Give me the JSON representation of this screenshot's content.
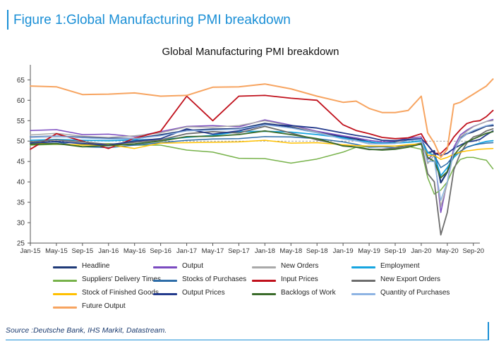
{
  "header": {
    "figure_title": "Figure 1:Global Manufacturing PMI breakdown"
  },
  "footer": {
    "source": "Source :Deutsche Bank, IHS Markit, Datastream."
  },
  "chart_data": {
    "type": "line",
    "title": "Global Manufacturing PMI breakdown",
    "xlabel": "",
    "ylabel": "",
    "ylim": [
      25,
      68
    ],
    "y_ticks": [
      25,
      30,
      35,
      40,
      45,
      50,
      55,
      60,
      65
    ],
    "reference_line": 50,
    "x_tick_labels": [
      "Jan-15",
      "May-15",
      "Sep-15",
      "Jan-16",
      "May-16",
      "Sep-16",
      "Jan-17",
      "May-17",
      "Sep-17",
      "Jan-18",
      "May-18",
      "Sep-18",
      "Jan-19",
      "May-19",
      "Sep-19",
      "Jan-20",
      "May-20",
      "Sep-20"
    ],
    "x": [
      "Jan-15",
      "May-15",
      "Sep-15",
      "Jan-16",
      "May-16",
      "Sep-16",
      "Jan-17",
      "May-17",
      "Sep-17",
      "Jan-18",
      "May-18",
      "Sep-18",
      "Jan-19",
      "Mar-19",
      "May-19",
      "Jul-19",
      "Sep-19",
      "Nov-19",
      "Jan-20",
      "Feb-20",
      "Mar-20",
      "Apr-20",
      "May-20",
      "Jun-20",
      "Jul-20",
      "Aug-20",
      "Sep-20",
      "Oct-20",
      "Nov-20",
      "Dec-20"
    ],
    "legend_position": "bottom",
    "grid": false,
    "series": [
      {
        "name": "Headline",
        "color": "#1f3a78",
        "width": 2.2,
        "values": [
          51.0,
          51.2,
          50.9,
          50.7,
          50.6,
          51.5,
          52.6,
          52.9,
          53.0,
          54.3,
          53.5,
          52.3,
          51.0,
          50.5,
          49.8,
          49.4,
          49.7,
          50.3,
          50.4,
          47.1,
          47.6,
          39.8,
          42.4,
          47.8,
          50.6,
          51.8,
          52.3,
          53.0,
          53.7,
          53.8
        ]
      },
      {
        "name": "Output",
        "color": "#7b4bc0",
        "width": 1.5,
        "values": [
          52.6,
          52.8,
          51.6,
          51.7,
          51.1,
          52.3,
          53.6,
          53.8,
          53.5,
          55.2,
          53.9,
          52.4,
          51.3,
          50.8,
          50.2,
          49.8,
          50.0,
          50.8,
          51.0,
          45.5,
          47.0,
          32.5,
          40.0,
          48.5,
          51.5,
          52.7,
          53.6,
          54.2,
          54.8,
          55.3
        ]
      },
      {
        "name": "New Orders",
        "color": "#a9a9a9",
        "width": 1.5,
        "values": [
          51.5,
          51.9,
          51.2,
          50.9,
          51.3,
          52.0,
          53.5,
          53.4,
          53.8,
          55.0,
          53.7,
          52.2,
          50.6,
          50.1,
          49.3,
          49.3,
          49.6,
          50.5,
          50.6,
          44.5,
          46.5,
          34.0,
          39.5,
          47.5,
          51.0,
          52.4,
          53.5,
          54.2,
          54.8,
          55.0
        ]
      },
      {
        "name": "Employment",
        "color": "#16a5e0",
        "width": 1.8,
        "values": [
          50.2,
          50.4,
          50.2,
          50.1,
          50.3,
          50.4,
          50.9,
          51.4,
          52.3,
          52.4,
          52.2,
          51.6,
          50.8,
          50.1,
          49.8,
          49.5,
          49.5,
          49.7,
          50.0,
          47.2,
          46.5,
          41.5,
          43.5,
          46.0,
          47.5,
          48.5,
          49.0,
          49.5,
          49.9,
          50.1
        ]
      },
      {
        "name": "Suppliers' Delivery Times",
        "color": "#77b24a",
        "width": 1.5,
        "values": [
          49.0,
          49.2,
          49.1,
          49.4,
          49.0,
          49.0,
          47.8,
          47.3,
          45.8,
          45.7,
          44.6,
          45.6,
          47.3,
          48.5,
          48.6,
          48.8,
          48.8,
          48.7,
          48.0,
          41.0,
          37.0,
          38.0,
          40.0,
          43.5,
          45.5,
          46.0,
          46.0,
          45.6,
          45.3,
          43.2
        ]
      },
      {
        "name": "Stocks of Purchases",
        "color": "#2e6da8",
        "width": 1.5,
        "values": [
          49.5,
          49.8,
          48.6,
          48.4,
          49.0,
          49.6,
          50.2,
          50.5,
          50.6,
          51.1,
          51.0,
          50.6,
          49.8,
          49.2,
          48.5,
          48.6,
          48.4,
          48.9,
          49.2,
          46.5,
          46.5,
          43.5,
          44.5,
          46.5,
          47.5,
          48.5,
          49.0,
          49.3,
          49.5,
          49.6
        ]
      },
      {
        "name": "Input Prices",
        "color": "#c0101b",
        "width": 1.8,
        "values": [
          48.0,
          51.8,
          50.0,
          48.2,
          50.7,
          52.4,
          61.0,
          55.0,
          61.0,
          61.2,
          60.5,
          60.0,
          54.0,
          52.6,
          51.8,
          50.9,
          50.6,
          50.8,
          51.8,
          49.0,
          47.0,
          47.0,
          48.5,
          51.0,
          52.8,
          54.3,
          54.8,
          55.0,
          56.0,
          57.5
        ]
      },
      {
        "name": "New Export Orders",
        "color": "#6d6d6d",
        "width": 1.8,
        "values": [
          49.8,
          50.3,
          49.8,
          49.2,
          49.7,
          50.3,
          51.8,
          52.3,
          52.0,
          53.6,
          52.0,
          50.3,
          49.0,
          48.5,
          47.9,
          48.0,
          48.3,
          48.9,
          49.5,
          42.0,
          40.0,
          27.0,
          32.5,
          43.0,
          47.0,
          49.5,
          51.0,
          51.5,
          52.5,
          53.0
        ]
      },
      {
        "name": "Stock of Finished Goods",
        "color": "#ffc000",
        "width": 1.5,
        "values": [
          49.5,
          49.3,
          49.0,
          49.1,
          48.2,
          49.5,
          49.6,
          49.7,
          49.8,
          50.2,
          49.5,
          49.6,
          49.1,
          48.9,
          48.8,
          48.8,
          48.8,
          49.1,
          49.3,
          46.5,
          46.5,
          45.5,
          46.0,
          46.8,
          47.3,
          47.6,
          47.8,
          48.0,
          48.1,
          48.2
        ]
      },
      {
        "name": "Output Prices",
        "color": "#233a8c",
        "width": 1.8,
        "values": [
          49.5,
          49.9,
          49.4,
          49.0,
          50.0,
          50.6,
          53.0,
          51.7,
          52.5,
          54.0,
          53.8,
          53.2,
          52.0,
          51.4,
          50.9,
          50.2,
          50.1,
          50.4,
          50.6,
          49.0,
          47.0,
          46.5,
          47.0,
          48.2,
          49.0,
          49.8,
          50.0,
          50.4,
          51.5,
          52.5
        ]
      },
      {
        "name": "Backlogs of Work",
        "color": "#3a6b2a",
        "width": 1.8,
        "values": [
          49.2,
          49.4,
          48.6,
          48.9,
          49.3,
          50.0,
          51.1,
          51.2,
          51.6,
          52.5,
          51.6,
          50.6,
          48.8,
          48.5,
          48.0,
          47.8,
          48.0,
          48.5,
          49.3,
          46.0,
          45.0,
          41.0,
          42.5,
          46.5,
          48.5,
          49.8,
          50.5,
          51.2,
          51.9,
          52.3
        ]
      },
      {
        "name": "Quantity of Purchases",
        "color": "#8eb4e3",
        "width": 1.5,
        "values": [
          51.0,
          51.2,
          50.8,
          50.5,
          50.6,
          51.3,
          52.5,
          52.7,
          52.9,
          54.0,
          53.2,
          52.0,
          50.5,
          50.1,
          49.4,
          49.3,
          49.4,
          50.1,
          50.4,
          45.0,
          45.0,
          35.5,
          40.0,
          47.5,
          50.5,
          51.8,
          52.6,
          53.2,
          53.8,
          54.1
        ]
      },
      {
        "name": "Future Output",
        "color": "#f7a460",
        "width": 2.0,
        "values": [
          63.5,
          63.3,
          61.4,
          61.5,
          61.8,
          61.0,
          61.2,
          63.2,
          63.3,
          64.0,
          62.8,
          61.0,
          59.5,
          59.8,
          58.0,
          57.0,
          57.0,
          57.5,
          61.0,
          52.0,
          49.5,
          46.0,
          48.0,
          59.0,
          59.5,
          60.5,
          61.5,
          62.5,
          63.5,
          65.2
        ]
      }
    ]
  }
}
